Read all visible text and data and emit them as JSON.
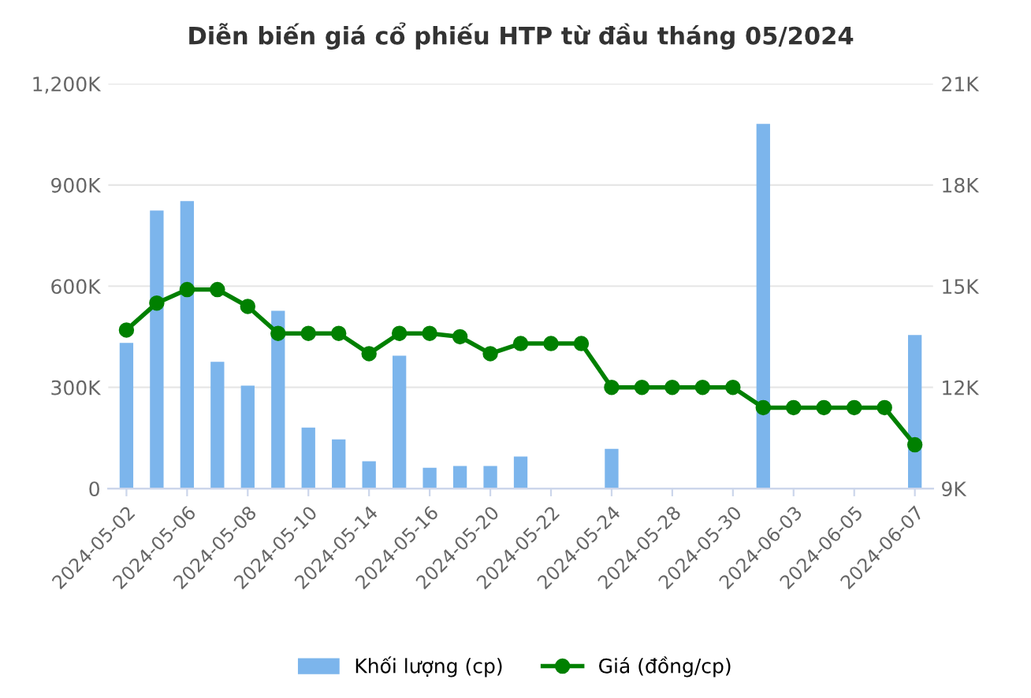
{
  "chart_data": {
    "type": "bar",
    "title": "Diễn biến giá cổ phiếu HTP từ đầu tháng 05/2024",
    "categories": [
      "2024-05-02",
      null,
      "2024-05-06",
      null,
      "2024-05-08",
      null,
      "2024-05-10",
      null,
      "2024-05-14",
      null,
      "2024-05-16",
      null,
      "2024-05-20",
      null,
      "2024-05-22",
      null,
      "2024-05-24",
      null,
      "2024-05-28",
      null,
      "2024-05-30",
      null,
      "2024-06-03",
      null,
      "2024-06-05",
      null,
      "2024-06-07"
    ],
    "series": [
      {
        "name": "Khối lượng (cp)",
        "color": "#7cb5ec",
        "values": [
          432,
          824,
          852,
          376,
          305,
          527,
          181,
          146,
          81,
          394,
          62,
          67,
          67,
          95,
          0,
          0,
          118,
          0,
          0,
          0,
          0,
          1081,
          0,
          0,
          0,
          0,
          455
        ]
      },
      {
        "name": "Giá (đồng/cp)",
        "type": "line",
        "axis": "y2",
        "color": "#008000",
        "marker": "circle",
        "line_style": "solid",
        "values": [
          13.7,
          14.5,
          14.9,
          14.9,
          14.4,
          13.6,
          13.6,
          13.6,
          13.0,
          13.6,
          13.6,
          13.5,
          13.0,
          13.3,
          13.3,
          13.3,
          12.0,
          12.0,
          12.0,
          12.0,
          12.0,
          11.4,
          11.4,
          11.4,
          11.4,
          11.4,
          10.3
        ]
      }
    ],
    "ylim": [
      0,
      1200
    ],
    "yticks": [
      {
        "value": 0,
        "label": "0"
      },
      {
        "value": 300,
        "label": "300K"
      },
      {
        "value": 600,
        "label": "600K"
      },
      {
        "value": 900,
        "label": "900K"
      },
      {
        "value": 1200,
        "label": "1,200K"
      }
    ],
    "y2lim": [
      9,
      21
    ],
    "y2ticks": [
      {
        "value": 9,
        "label": "9K"
      },
      {
        "value": 12,
        "label": "12K"
      },
      {
        "value": 15,
        "label": "15K"
      },
      {
        "value": 18,
        "label": "18K"
      },
      {
        "value": 21,
        "label": "21K"
      }
    ],
    "grid": "y",
    "legend": "bottom"
  }
}
